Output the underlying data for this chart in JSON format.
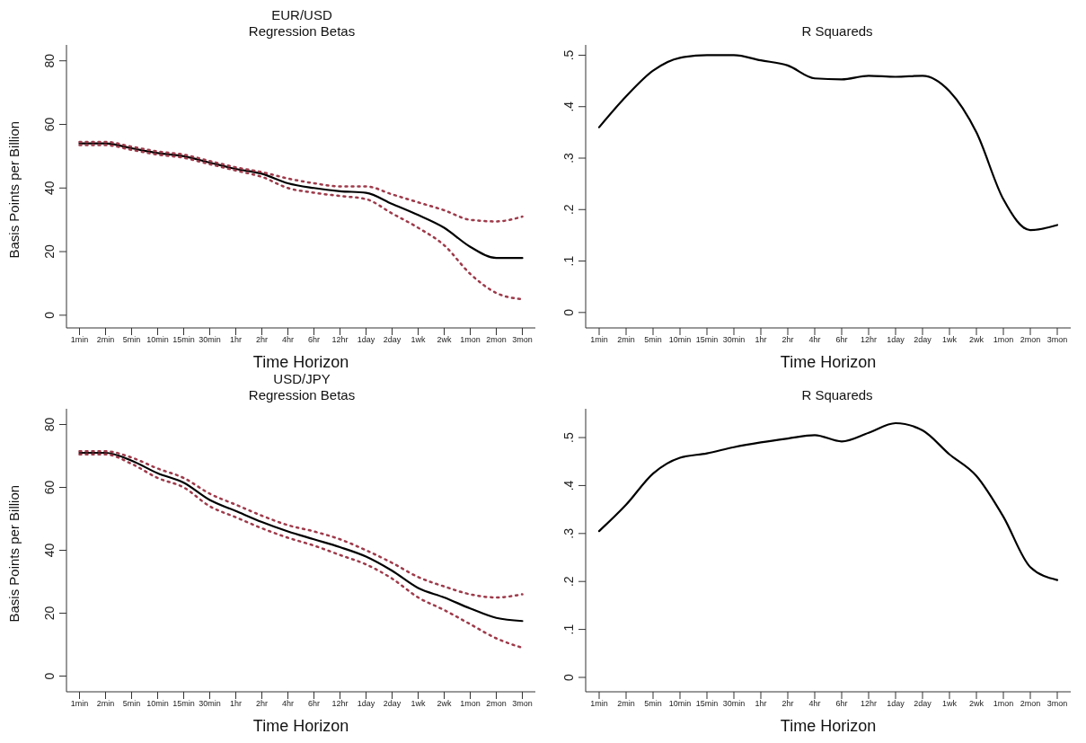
{
  "chart_data": [
    {
      "type": "line",
      "title": "EUR/USD",
      "subtitle": "Regression Betas",
      "xlabel": "Time Horizon",
      "ylabel": "Basis Points per Billion",
      "categories": [
        "1min",
        "2min",
        "5min",
        "10min",
        "15min",
        "30min",
        "1hr",
        "2hr",
        "4hr",
        "6hr",
        "12hr",
        "1day",
        "2day",
        "1wk",
        "2wk",
        "1mon",
        "2mon",
        "3mon"
      ],
      "ylim": [
        -4,
        85
      ],
      "yticks": [
        0,
        20,
        40,
        60,
        80
      ],
      "grid": false,
      "legend": false,
      "marker": "none",
      "series": [
        {
          "color": "#000000",
          "line_style": "solid",
          "values": [
            54,
            54,
            52.5,
            51,
            50,
            48,
            46,
            44.5,
            41.5,
            40,
            39,
            38.5,
            35,
            31.5,
            27.5,
            21.5,
            18,
            18
          ]
        },
        {
          "color": "#9e3a4a",
          "line_style": "dotted",
          "values": [
            54.5,
            54.5,
            53,
            51.5,
            50.5,
            48.5,
            46.5,
            45,
            43,
            41.5,
            40.5,
            40.5,
            38,
            35.5,
            33,
            30,
            29.5,
            31
          ]
        },
        {
          "color": "#9e3a4a",
          "line_style": "dotted",
          "values": [
            53.5,
            53.5,
            52,
            50.5,
            49.5,
            47.5,
            45.5,
            43.5,
            40,
            38.5,
            37.5,
            36.5,
            32,
            27.5,
            22,
            13,
            7,
            5
          ]
        }
      ]
    },
    {
      "type": "line",
      "title": "R Squareds",
      "xlabel": "Time Horizon",
      "categories": [
        "1min",
        "2min",
        "5min",
        "10min",
        "15min",
        "30min",
        "1hr",
        "2hr",
        "4hr",
        "6hr",
        "12hr",
        "1day",
        "2day",
        "1wk",
        "2wk",
        "1mon",
        "2mon",
        "3mon"
      ],
      "ylim": [
        -0.03,
        0.52
      ],
      "yticks": [
        0,
        {
          "value": 0.1,
          "label": ".1"
        },
        {
          "value": 0.2,
          "label": ".2"
        },
        {
          "value": 0.3,
          "label": ".3"
        },
        {
          "value": 0.4,
          "label": ".4"
        },
        {
          "value": 0.5,
          "label": ".5"
        }
      ],
      "grid": false,
      "legend": false,
      "marker": "none",
      "series": [
        {
          "color": "#000000",
          "line_style": "solid",
          "values": [
            0.36,
            0.42,
            0.47,
            0.495,
            0.5,
            0.5,
            0.49,
            0.48,
            0.455,
            0.453,
            0.46,
            0.458,
            0.46,
            0.43,
            0.35,
            0.22,
            0.16,
            0.17
          ]
        }
      ]
    },
    {
      "type": "line",
      "title": "USD/JPY",
      "subtitle": "Regression Betas",
      "xlabel": "Time Horizon",
      "ylabel": "Basis Points per Billion",
      "categories": [
        "1min",
        "2min",
        "5min",
        "10min",
        "15min",
        "30min",
        "1hr",
        "2hr",
        "4hr",
        "6hr",
        "12hr",
        "1day",
        "2day",
        "1wk",
        "2wk",
        "1mon",
        "2mon",
        "3mon"
      ],
      "ylim": [
        -5,
        85
      ],
      "yticks": [
        0,
        20,
        40,
        60,
        80
      ],
      "grid": false,
      "legend": false,
      "marker": "none",
      "series": [
        {
          "color": "#000000",
          "line_style": "solid",
          "values": [
            71,
            71,
            68.5,
            64.5,
            61.5,
            56,
            52.5,
            49,
            46,
            43.5,
            41,
            38,
            33.5,
            28,
            25,
            21.5,
            18.5,
            17.5
          ]
        },
        {
          "color": "#9e3a4a",
          "line_style": "dotted",
          "values": [
            71.5,
            71.5,
            69.5,
            66,
            63,
            58,
            54.5,
            51,
            48,
            46,
            43.5,
            40,
            36,
            31.5,
            28.5,
            26,
            25,
            26
          ]
        },
        {
          "color": "#9e3a4a",
          "line_style": "dotted",
          "values": [
            70.5,
            70.5,
            67.5,
            63,
            60,
            54,
            50.5,
            47,
            44,
            41.5,
            38.5,
            35.5,
            31,
            25,
            21,
            16.5,
            12,
            9
          ]
        }
      ]
    },
    {
      "type": "line",
      "title": "R Squareds",
      "xlabel": "Time Horizon",
      "categories": [
        "1min",
        "2min",
        "5min",
        "10min",
        "15min",
        "30min",
        "1hr",
        "2hr",
        "4hr",
        "6hr",
        "12hr",
        "1day",
        "2day",
        "1wk",
        "2wk",
        "1mon",
        "2mon",
        "3mon"
      ],
      "ylim": [
        -0.03,
        0.56
      ],
      "yticks": [
        0,
        {
          "value": 0.1,
          "label": ".1"
        },
        {
          "value": 0.2,
          "label": ".2"
        },
        {
          "value": 0.3,
          "label": ".3"
        },
        {
          "value": 0.4,
          "label": ".4"
        },
        {
          "value": 0.5,
          "label": ".5"
        }
      ],
      "grid": false,
      "legend": false,
      "marker": "none",
      "series": [
        {
          "color": "#000000",
          "line_style": "solid",
          "values": [
            0.305,
            0.36,
            0.425,
            0.458,
            0.467,
            0.48,
            0.49,
            0.498,
            0.505,
            0.492,
            0.51,
            0.53,
            0.515,
            0.465,
            0.42,
            0.335,
            0.23,
            0.203
          ]
        }
      ]
    }
  ]
}
